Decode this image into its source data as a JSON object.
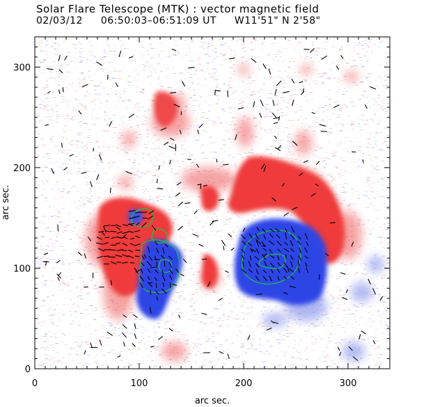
{
  "header": {
    "title": "Solar Flare Telescope (MTK) : vector magnetic field",
    "date": "02/03/12",
    "time_range": "06:50:03–06:51:09 UT",
    "position": "W11'51\"  N 2'58\""
  },
  "chart_data": {
    "type": "heatmap",
    "xlabel": "arc sec.",
    "ylabel": "arc sec.",
    "xlim": [
      0,
      340
    ],
    "ylim": [
      0,
      330
    ],
    "x_ticks": [
      0,
      100,
      200,
      300
    ],
    "y_ticks": [
      0,
      100,
      200,
      300
    ],
    "colors": {
      "positive": "#ef3b3b",
      "negative": "#2d45e6",
      "contour": "#19c44a",
      "vector": "#000000",
      "noise_pos": "#f2b4b4",
      "noise_neg": "#b8bef0"
    }
  }
}
